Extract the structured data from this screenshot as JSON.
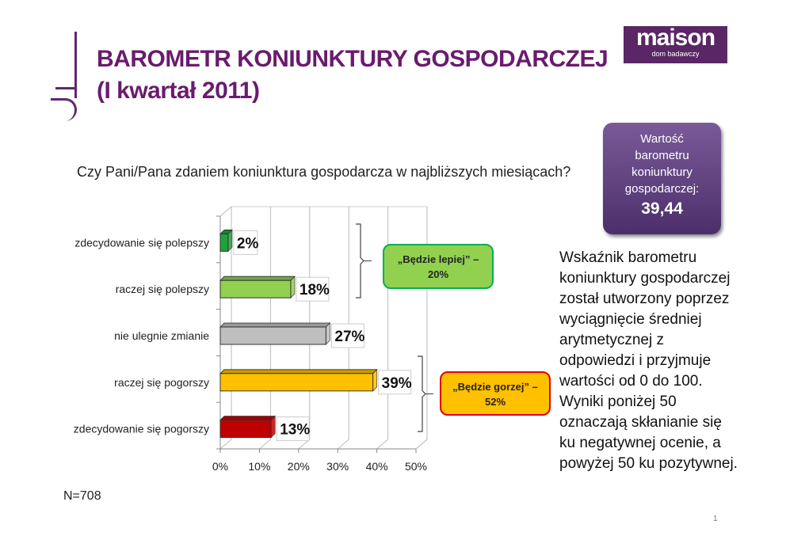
{
  "title_line1": "BAROMETR KONIUNKTURY GOSPODARCZEJ",
  "title_line2": "(I kwartał 2011)",
  "logo": {
    "name": "maison",
    "tagline": "dom badawczy"
  },
  "question": "Czy Pani/Pana zdaniem koniunktura gospodarcza w najbliższych miesiącach?",
  "barometer": {
    "label_lines": [
      "Wartość",
      "barometru",
      "koniunktury",
      "gospodarczej:"
    ],
    "value": "39,44"
  },
  "description": "Wskaźnik barometru koniunktury gospodarczej został utworzony poprzez wyciągnięcie średniej arytmetycznej z odpowiedzi i przyjmuje wartości od 0 do 100. Wyniki poniżej 50 oznaczają skłanianie się ku negatywnej ocenie, a powyżej 50 ku pozytywnej.",
  "sample": "N=708",
  "page_number": "1",
  "chart_data": {
    "type": "bar",
    "orientation": "horizontal",
    "categories": [
      "zdecydowanie się polepszy",
      "raczej się polepszy",
      "nie ulegnie zmianie",
      "raczej się pogorszy",
      "zdecydowanie się pogorszy"
    ],
    "values": [
      2,
      18,
      27,
      39,
      13
    ],
    "value_labels": [
      "2%",
      "18%",
      "27%",
      "39%",
      "13%"
    ],
    "colors": [
      "#1fa23a",
      "#92d050",
      "#bfbfbf",
      "#ffc000",
      "#c00000"
    ],
    "xlim": [
      0,
      50
    ],
    "xticks": [
      "0%",
      "10%",
      "20%",
      "30%",
      "40%",
      "50%"
    ],
    "grid": true,
    "annotations": [
      {
        "text_line1": "„Będzie lepiej” –",
        "text_line2": "20%",
        "fill": "#92d050",
        "border": "#00b050"
      },
      {
        "text_line1": "„Będzie gorzej” –",
        "text_line2": "52%",
        "fill": "#ffc000",
        "border": "#e00000"
      }
    ]
  }
}
